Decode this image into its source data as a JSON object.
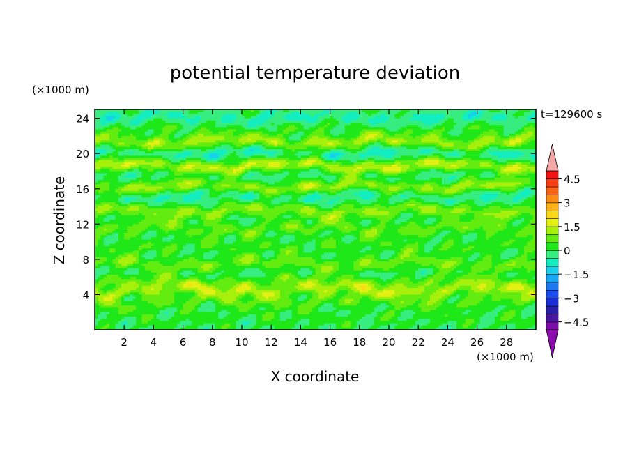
{
  "chart_data": {
    "type": "heatmap",
    "title": "potential temperature deviation",
    "xlabel": "X coordinate",
    "ylabel": "Z coordinate",
    "x_unit": "(×1000 m)",
    "y_unit": "(×1000 m)",
    "time_label": "t=129600 s",
    "x_ticks": [
      2,
      4,
      6,
      8,
      10,
      12,
      14,
      16,
      18,
      20,
      22,
      24,
      26,
      28
    ],
    "y_ticks": [
      4,
      8,
      12,
      16,
      20,
      24
    ],
    "xlim": [
      0,
      30
    ],
    "ylim": [
      0,
      25
    ],
    "colorbar": {
      "levels": [
        -5,
        -4.5,
        -4,
        -3.5,
        -3,
        -2.5,
        -2,
        -1.5,
        -1,
        -0.5,
        0,
        0.5,
        1,
        1.5,
        2,
        2.5,
        3,
        3.5,
        4,
        4.5,
        5
      ],
      "tick_labels": [
        "4.5",
        "3",
        "1.5",
        "0",
        "−1.5",
        "−3",
        "−4.5"
      ],
      "tick_values": [
        4.5,
        3,
        1.5,
        0,
        -1.5,
        -3,
        -4.5
      ],
      "colors": [
        "#7a0ea8",
        "#4a16a0",
        "#2820a8",
        "#1a2ed8",
        "#1a4cf2",
        "#1e78f0",
        "#14a8f2",
        "#18d2ec",
        "#12eec0",
        "#36ee80",
        "#1ee818",
        "#62ec10",
        "#a6f00c",
        "#e2f014",
        "#fada14",
        "#fab414",
        "#fa8c14",
        "#fa6414",
        "#f83c14",
        "#f01414"
      ],
      "extend_low_color": "#8c0cae",
      "extend_high_color": "#f4a8a8"
    },
    "bands": [
      {
        "z": 1.5,
        "v": 0.2
      },
      {
        "z": 3.2,
        "v": 0.6
      },
      {
        "z": 4.5,
        "v": 1.1
      },
      {
        "z": 5.5,
        "v": 0.7
      },
      {
        "z": 6.2,
        "v": -0.2
      },
      {
        "z": 7.5,
        "v": 0.8
      },
      {
        "z": 9.5,
        "v": 0.4
      },
      {
        "z": 11.5,
        "v": 0.7
      },
      {
        "z": 13.5,
        "v": 1.0
      },
      {
        "z": 15.2,
        "v": -0.6
      },
      {
        "z": 16.2,
        "v": 1.2
      },
      {
        "z": 17.6,
        "v": -0.3
      },
      {
        "z": 18.6,
        "v": 1.5
      },
      {
        "z": 20.0,
        "v": -0.7
      },
      {
        "z": 21.3,
        "v": 1.2
      },
      {
        "z": 22.8,
        "v": 0.3
      },
      {
        "z": 24.0,
        "v": -0.6
      }
    ],
    "grid": false
  }
}
